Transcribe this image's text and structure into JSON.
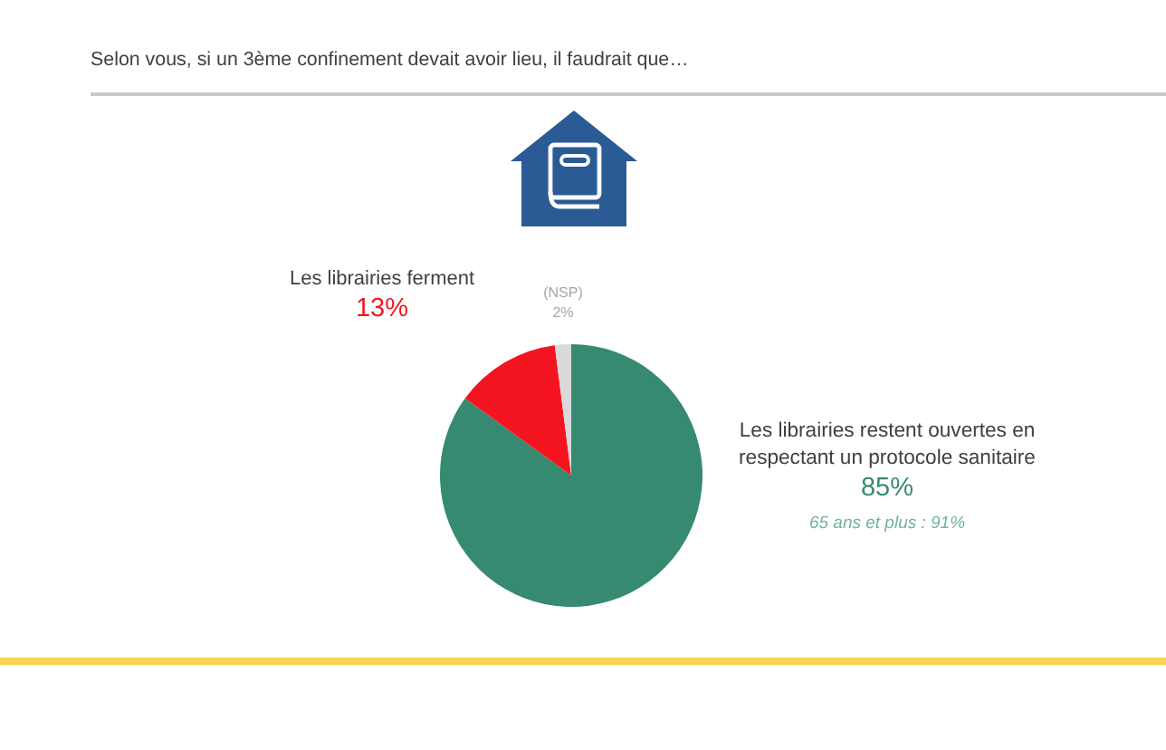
{
  "chart_data": {
    "type": "pie",
    "title": "Selon vous, si un 3ème confinement devait avoir lieu, il faudrait que…",
    "categories": [
      "Les librairies restent ouvertes en respectant un protocole sanitaire",
      "Les librairies ferment",
      "(NSP)"
    ],
    "values": [
      85,
      13,
      2
    ],
    "colors": [
      "#368a71",
      "#f4141f",
      "#d9d9d9"
    ],
    "value_labels": [
      "85%",
      "13%",
      "2%"
    ],
    "annotations": [
      "65 ans et plus : 91%"
    ]
  }
}
